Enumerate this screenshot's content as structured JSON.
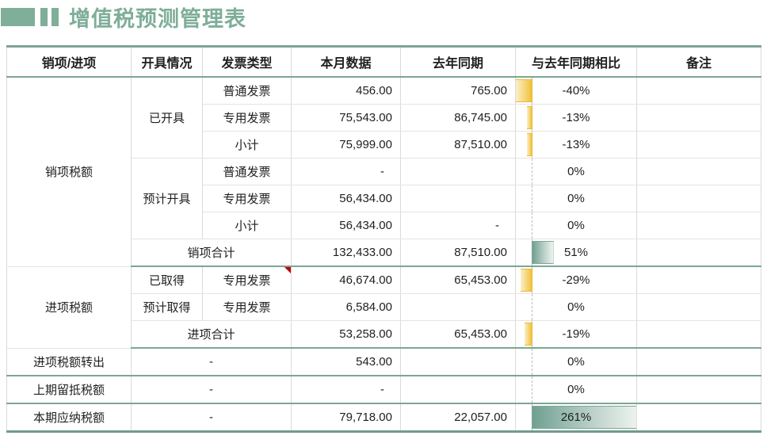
{
  "title": {
    "text": "增值税预测管理表"
  },
  "colors": {
    "accent_green": "#7FAE99",
    "separator_green": "#7CA695",
    "negative_bar_gold": "#F1C13B",
    "positive_bar_teal": "#6FA092",
    "comment_red": "#C00000"
  },
  "table": {
    "headers": [
      "销项/进项",
      "开具情况",
      "发票类型",
      "本月数据",
      "去年同期",
      "与去年同期相比",
      "备注"
    ],
    "databar_axis": {
      "min": -40,
      "max": 261
    },
    "rows": [
      {
        "sep": false,
        "cells": [
          {
            "col": 1,
            "rowspan": 7,
            "text": "销项税额",
            "type": "lbl"
          },
          {
            "col": 2,
            "rowspan": 3,
            "text": "已开具",
            "type": "lbl"
          },
          {
            "col": 3,
            "text": "普通发票",
            "type": "lbl"
          },
          {
            "col": 4,
            "text": "456.00",
            "type": "num"
          },
          {
            "col": 5,
            "text": "765.00",
            "type": "num"
          },
          {
            "col": 6,
            "text": "-40%",
            "value": -40,
            "type": "pct"
          },
          {
            "col": 7,
            "text": "",
            "type": "note"
          }
        ]
      },
      {
        "sep": false,
        "cells": [
          {
            "col": 3,
            "text": "专用发票",
            "type": "lbl"
          },
          {
            "col": 4,
            "text": "75,543.00",
            "type": "num"
          },
          {
            "col": 5,
            "text": "86,745.00",
            "type": "num"
          },
          {
            "col": 6,
            "text": "-13%",
            "value": -13,
            "type": "pct"
          },
          {
            "col": 7,
            "text": "",
            "type": "note"
          }
        ]
      },
      {
        "sep": false,
        "cells": [
          {
            "col": 3,
            "text": "小计",
            "type": "lbl"
          },
          {
            "col": 4,
            "text": "75,999.00",
            "type": "num"
          },
          {
            "col": 5,
            "text": "87,510.00",
            "type": "num"
          },
          {
            "col": 6,
            "text": "-13%",
            "value": -13,
            "type": "pct"
          },
          {
            "col": 7,
            "text": "",
            "type": "note"
          }
        ]
      },
      {
        "sep": false,
        "cells": [
          {
            "col": 2,
            "rowspan": 3,
            "text": "预计开具",
            "type": "lbl"
          },
          {
            "col": 3,
            "text": "普通发票",
            "type": "lbl"
          },
          {
            "col": 4,
            "text": "-",
            "type": "dashnum"
          },
          {
            "col": 5,
            "text": "",
            "type": "num"
          },
          {
            "col": 6,
            "text": "0%",
            "value": 0,
            "type": "pct"
          },
          {
            "col": 7,
            "text": "",
            "type": "note"
          }
        ]
      },
      {
        "sep": false,
        "cells": [
          {
            "col": 3,
            "text": "专用发票",
            "type": "lbl"
          },
          {
            "col": 4,
            "text": "56,434.00",
            "type": "num"
          },
          {
            "col": 5,
            "text": "",
            "type": "num"
          },
          {
            "col": 6,
            "text": "0%",
            "value": 0,
            "type": "pct"
          },
          {
            "col": 7,
            "text": "",
            "type": "note"
          }
        ]
      },
      {
        "sep": false,
        "cells": [
          {
            "col": 3,
            "text": "小计",
            "type": "lbl"
          },
          {
            "col": 4,
            "text": "56,434.00",
            "type": "num"
          },
          {
            "col": 5,
            "text": "-",
            "type": "dashnum"
          },
          {
            "col": 6,
            "text": "0%",
            "value": 0,
            "type": "pct"
          },
          {
            "col": 7,
            "text": "",
            "type": "note"
          }
        ]
      },
      {
        "sep": true,
        "cells": [
          {
            "col": 2,
            "colspan": 2,
            "text": "销项合计",
            "type": "lbl"
          },
          {
            "col": 4,
            "text": "132,433.00",
            "type": "num"
          },
          {
            "col": 5,
            "text": "87,510.00",
            "type": "num"
          },
          {
            "col": 6,
            "text": "51%",
            "value": 51,
            "type": "pct"
          },
          {
            "col": 7,
            "text": "",
            "type": "note"
          }
        ]
      },
      {
        "sep": false,
        "cells": [
          {
            "col": 1,
            "rowspan": 3,
            "text": "进项税额",
            "type": "lbl"
          },
          {
            "col": 2,
            "text": "已取得",
            "type": "lbl"
          },
          {
            "col": 3,
            "text": "专用发票",
            "type": "lbl",
            "comment": true
          },
          {
            "col": 4,
            "text": "46,674.00",
            "type": "num"
          },
          {
            "col": 5,
            "text": "65,453.00",
            "type": "num"
          },
          {
            "col": 6,
            "text": "-29%",
            "value": -29,
            "type": "pct"
          },
          {
            "col": 7,
            "text": "",
            "type": "note"
          }
        ]
      },
      {
        "sep": false,
        "cells": [
          {
            "col": 2,
            "text": "预计取得",
            "type": "lbl"
          },
          {
            "col": 3,
            "text": "专用发票",
            "type": "lbl"
          },
          {
            "col": 4,
            "text": "6,584.00",
            "type": "num"
          },
          {
            "col": 5,
            "text": "",
            "type": "num"
          },
          {
            "col": 6,
            "text": "0%",
            "value": 0,
            "type": "pct"
          },
          {
            "col": 7,
            "text": "",
            "type": "note"
          }
        ]
      },
      {
        "sep": true,
        "cells": [
          {
            "col": 2,
            "colspan": 2,
            "text": "进项合计",
            "type": "lbl"
          },
          {
            "col": 4,
            "text": "53,258.00",
            "type": "num"
          },
          {
            "col": 5,
            "text": "65,453.00",
            "type": "num"
          },
          {
            "col": 6,
            "text": "-19%",
            "value": -19,
            "type": "pct"
          },
          {
            "col": 7,
            "text": "",
            "type": "note"
          }
        ]
      },
      {
        "sep": true,
        "cells": [
          {
            "col": 1,
            "text": "进项税额转出",
            "type": "lbl"
          },
          {
            "col": 2,
            "colspan": 2,
            "text": "-",
            "type": "lbl"
          },
          {
            "col": 4,
            "text": "543.00",
            "type": "num"
          },
          {
            "col": 5,
            "text": "",
            "type": "num"
          },
          {
            "col": 6,
            "text": "0%",
            "value": 0,
            "type": "pct"
          },
          {
            "col": 7,
            "text": "",
            "type": "note"
          }
        ]
      },
      {
        "sep": true,
        "cells": [
          {
            "col": 1,
            "text": "上期留抵税额",
            "type": "lbl"
          },
          {
            "col": 2,
            "colspan": 2,
            "text": "-",
            "type": "lbl"
          },
          {
            "col": 4,
            "text": "-",
            "type": "dashnum"
          },
          {
            "col": 5,
            "text": "",
            "type": "num"
          },
          {
            "col": 6,
            "text": "0%",
            "value": 0,
            "type": "pct"
          },
          {
            "col": 7,
            "text": "",
            "type": "note"
          }
        ]
      },
      {
        "sep": true,
        "last": true,
        "cells": [
          {
            "col": 1,
            "text": "本期应纳税额",
            "type": "lbl"
          },
          {
            "col": 2,
            "colspan": 2,
            "text": "-",
            "type": "lbl"
          },
          {
            "col": 4,
            "text": "79,718.00",
            "type": "num"
          },
          {
            "col": 5,
            "text": "22,057.00",
            "type": "num"
          },
          {
            "col": 6,
            "text": "261%",
            "value": 261,
            "type": "pct"
          },
          {
            "col": 7,
            "text": "",
            "type": "note"
          }
        ]
      }
    ]
  }
}
